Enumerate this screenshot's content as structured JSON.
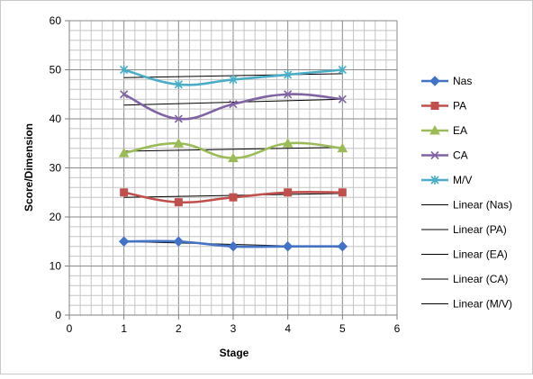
{
  "chart_data": {
    "type": "scatter",
    "title": "",
    "xlabel": "Stage",
    "ylabel": "Score/Dimension",
    "xlim": [
      0,
      6
    ],
    "ylim": [
      0,
      60
    ],
    "x_ticks": [
      "0",
      "1",
      "2",
      "3",
      "4",
      "5",
      "6"
    ],
    "y_ticks": [
      "0",
      "10",
      "20",
      "30",
      "40",
      "50",
      "60"
    ],
    "x_minor_step": 0.2,
    "y_minor_step": 2,
    "grid": true,
    "legend_position": "right",
    "series": [
      {
        "name": "Nas",
        "color": "#4472C4",
        "marker": "diamond",
        "x": [
          1,
          2,
          3,
          4,
          5
        ],
        "y": [
          15,
          15,
          14,
          14,
          14
        ]
      },
      {
        "name": "PA",
        "color": "#C0504D",
        "marker": "square",
        "x": [
          1,
          2,
          3,
          4,
          5
        ],
        "y": [
          25,
          23,
          24,
          25,
          25
        ]
      },
      {
        "name": "EA",
        "color": "#9BBB59",
        "marker": "triangle",
        "x": [
          1,
          2,
          3,
          4,
          5
        ],
        "y": [
          33,
          35,
          32,
          35,
          34
        ]
      },
      {
        "name": "CA",
        "color": "#8064A2",
        "marker": "x",
        "x": [
          1,
          2,
          3,
          4,
          5
        ],
        "y": [
          45,
          40,
          43,
          45,
          44
        ]
      },
      {
        "name": "M/V",
        "color": "#4BACC6",
        "marker": "star",
        "x": [
          1,
          2,
          3,
          4,
          5
        ],
        "y": [
          50,
          47,
          48,
          49,
          50
        ]
      }
    ],
    "trendlines": [
      {
        "name": "Linear (Nas)",
        "color": "#000000",
        "of": "Nas"
      },
      {
        "name": "Linear (PA)",
        "color": "#000000",
        "of": "PA"
      },
      {
        "name": "Linear (EA)",
        "color": "#000000",
        "of": "EA"
      },
      {
        "name": "Linear (CA)",
        "color": "#000000",
        "of": "CA"
      },
      {
        "name": "Linear (M/V)",
        "color": "#000000",
        "of": "M/V"
      }
    ]
  }
}
